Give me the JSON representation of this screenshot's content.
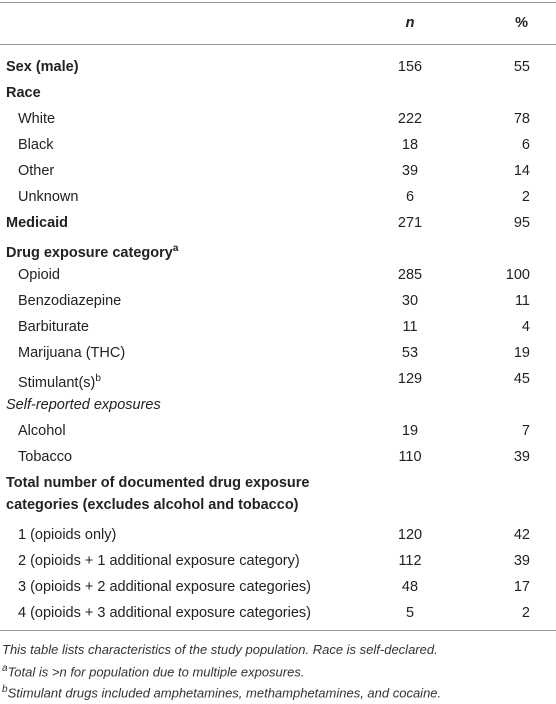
{
  "table": {
    "columns": [
      "n",
      "%"
    ],
    "rows": [
      {
        "label": [
          "Sex (male)"
        ],
        "bold": true,
        "n": 156,
        "pct": 55
      },
      {
        "label": [
          "Race"
        ],
        "bold": true
      },
      {
        "label": [
          "White"
        ],
        "indent": true,
        "n": 222,
        "pct": 78
      },
      {
        "label": [
          "Black"
        ],
        "indent": true,
        "n": 18,
        "pct": 6
      },
      {
        "label": [
          "Other"
        ],
        "indent": true,
        "n": 39,
        "pct": 14
      },
      {
        "label": [
          "Unknown"
        ],
        "indent": true,
        "n": 6,
        "pct": 2
      },
      {
        "label": [
          "Medicaid"
        ],
        "bold": true,
        "n": 271,
        "pct": 95
      },
      {
        "label": [
          "Drug exposure category"
        ],
        "sup": "a",
        "bold": true
      },
      {
        "label": [
          "Opioid"
        ],
        "indent": true,
        "n": 285,
        "pct": 100
      },
      {
        "label": [
          "Benzodiazepine"
        ],
        "indent": true,
        "n": 30,
        "pct": 11
      },
      {
        "label": [
          "Barbiturate"
        ],
        "indent": true,
        "n": 11,
        "pct": 4
      },
      {
        "label": [
          "Marijuana (THC)"
        ],
        "indent": true,
        "n": 53,
        "pct": 19
      },
      {
        "label": [
          "Stimulant(s)"
        ],
        "sup": "b",
        "indent": true,
        "n": 129,
        "pct": 45
      },
      {
        "label": [
          "Self-reported exposures"
        ],
        "italic": true
      },
      {
        "label": [
          "Alcohol"
        ],
        "indent": true,
        "n": 19,
        "pct": 7
      },
      {
        "label": [
          "Tobacco"
        ],
        "indent": true,
        "n": 110,
        "pct": 39
      },
      {
        "label": [
          "Total number of documented drug exposure",
          "categories (excludes alcohol and tobacco)"
        ],
        "bold": true
      },
      {
        "label": [
          "1 (opioids only)"
        ],
        "indent": true,
        "n": 120,
        "pct": 42
      },
      {
        "label": [
          "2 (opioids + 1 additional exposure category)"
        ],
        "indent": true,
        "n": 112,
        "pct": 39
      },
      {
        "label": [
          "3 (opioids + 2 additional exposure categories)"
        ],
        "indent": true,
        "n": 48,
        "pct": 17
      },
      {
        "label": [
          "4 (opioids + 3 additional exposure categories)"
        ],
        "indent": true,
        "n": 5,
        "pct": 2
      }
    ],
    "footnotes": [
      {
        "text": "This table lists characteristics of the study population. Race is self-declared."
      },
      {
        "sup": "a",
        "text": "Total is >n for population due to multiple exposures."
      },
      {
        "sup": "b",
        "text": "Stimulant drugs included amphetamines, methamphetamines, and cocaine."
      }
    ]
  }
}
